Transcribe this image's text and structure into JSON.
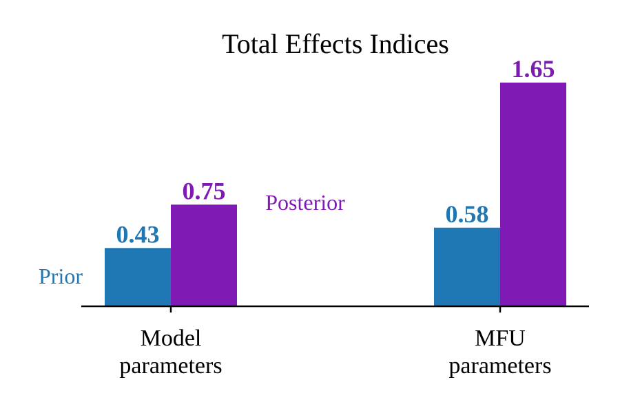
{
  "chart_data": {
    "type": "bar",
    "title": "Total Effects Indices",
    "xlabel": "",
    "ylabel": "",
    "categories": [
      [
        "Model",
        "parameters"
      ],
      [
        "MFU",
        "parameters"
      ]
    ],
    "series": [
      {
        "name": "Prior",
        "values": [
          0.43,
          0.58
        ],
        "color": "#1f77b4"
      },
      {
        "name": "Posterior",
        "values": [
          0.75,
          1.65
        ],
        "color": "#7f1ab4"
      }
    ],
    "value_labels": [
      [
        "0.43",
        "0.58"
      ],
      [
        "0.75",
        "1.65"
      ]
    ],
    "ylim": [
      0,
      1.65
    ],
    "grid": false,
    "legend": "inline labels beside the first group",
    "axis_color": "#000000"
  }
}
